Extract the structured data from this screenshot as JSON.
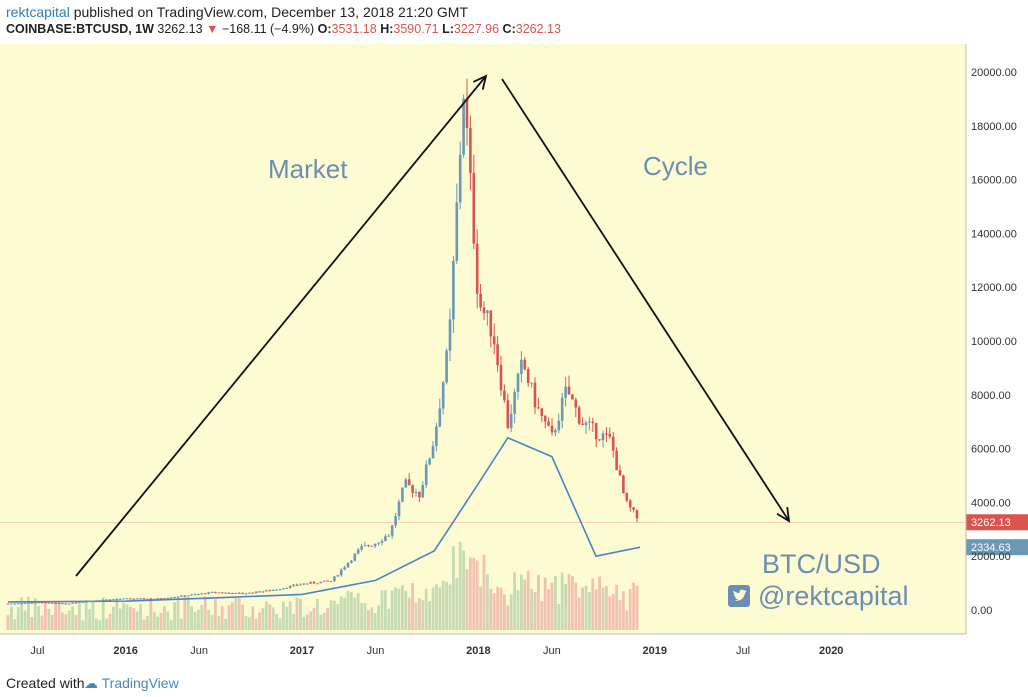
{
  "header": {
    "author": "rektcapital",
    "published": "published on TradingView.com, December 13, 2018 21:20 GMT",
    "symbol": "COINBASE:BTCUSD, 1W",
    "last": "3262.13",
    "change": "−168.11 (−4.9%)",
    "o_label": "O:",
    "o_value": "3531.18",
    "h_label": "H:",
    "h_value": "3590.71",
    "l_label": "L:",
    "l_value": "3227.96",
    "c_label": "C:",
    "c_value": "3262.13"
  },
  "annotations": {
    "market": "Market",
    "cycle": "Cycle",
    "pair": "BTC/USD",
    "handle": "@rektcapital"
  },
  "footer": {
    "created": "Created with",
    "brand": "TradingView"
  },
  "colors": {
    "background": "#fdfbd2",
    "up": "#6a98b5",
    "down": "#d9534f",
    "ma_line": "#4a84c4",
    "annotation_text": "#6b8fb2",
    "vol_up": "#c5dcb3",
    "vol_down": "#f2c2b0"
  },
  "chart_data": {
    "type": "candlestick",
    "title": "",
    "y_ticks": [
      "20000.00",
      "18000.00",
      "16000.00",
      "14000.00",
      "12000.00",
      "10000.00",
      "8000.00",
      "6000.00",
      "4000.00",
      "2000.00",
      "0.00"
    ],
    "x_ticks": [
      "Jul",
      "2016",
      "Jun",
      "2017",
      "Jun",
      "2018",
      "Jun",
      "2019",
      "Jul",
      "2020"
    ],
    "x_ticks_bold": [
      "2016",
      "2017",
      "2018",
      "2019",
      "2020"
    ],
    "ylim": [
      -800,
      21000
    ],
    "price_labels": [
      {
        "label": "3262.13",
        "value": 3262.13,
        "color": "#d9534f"
      },
      {
        "label": "2334.63",
        "value": 2334.63,
        "color": "#6a98b5"
      }
    ],
    "x_axis": {
      "start": "2015-05",
      "end": "2020-09",
      "unit": "weeks"
    },
    "close_series": [
      {
        "date": "2015-05",
        "value": 237
      },
      {
        "date": "2015-07",
        "value": 280
      },
      {
        "date": "2015-09",
        "value": 235
      },
      {
        "date": "2015-11",
        "value": 370
      },
      {
        "date": "2016-01",
        "value": 420
      },
      {
        "date": "2016-03",
        "value": 416
      },
      {
        "date": "2016-05",
        "value": 530
      },
      {
        "date": "2016-07",
        "value": 660
      },
      {
        "date": "2016-09",
        "value": 608
      },
      {
        "date": "2016-11",
        "value": 740
      },
      {
        "date": "2017-01",
        "value": 970
      },
      {
        "date": "2017-03",
        "value": 1080
      },
      {
        "date": "2017-05",
        "value": 2300
      },
      {
        "date": "2017-06",
        "value": 2500
      },
      {
        "date": "2017-07",
        "value": 2850
      },
      {
        "date": "2017-08",
        "value": 4700
      },
      {
        "date": "2017-09",
        "value": 4300
      },
      {
        "date": "2017-10",
        "value": 6400
      },
      {
        "date": "2017-11",
        "value": 9900
      },
      {
        "date": "2017-12",
        "value": 19400
      },
      {
        "date": "2018-01",
        "value": 11500
      },
      {
        "date": "2018-02",
        "value": 10300
      },
      {
        "date": "2018-03",
        "value": 6900
      },
      {
        "date": "2018-04",
        "value": 9200
      },
      {
        "date": "2018-05",
        "value": 7500
      },
      {
        "date": "2018-06",
        "value": 6400
      },
      {
        "date": "2018-07",
        "value": 8200
      },
      {
        "date": "2018-08",
        "value": 7000
      },
      {
        "date": "2018-09",
        "value": 6600
      },
      {
        "date": "2018-10",
        "value": 6300
      },
      {
        "date": "2018-11",
        "value": 4000
      },
      {
        "date": "2018-12",
        "value": 3262
      }
    ],
    "moving_average": [
      {
        "date": "2015-05",
        "value": 300
      },
      {
        "date": "2016-01",
        "value": 330
      },
      {
        "date": "2016-07",
        "value": 450
      },
      {
        "date": "2017-01",
        "value": 580
      },
      {
        "date": "2017-06",
        "value": 1100
      },
      {
        "date": "2017-10",
        "value": 2200
      },
      {
        "date": "2018-01",
        "value": 4700
      },
      {
        "date": "2018-03",
        "value": 6400
      },
      {
        "date": "2018-06",
        "value": 5700
      },
      {
        "date": "2018-09",
        "value": 2000
      },
      {
        "date": "2018-12",
        "value": 2334
      }
    ]
  }
}
